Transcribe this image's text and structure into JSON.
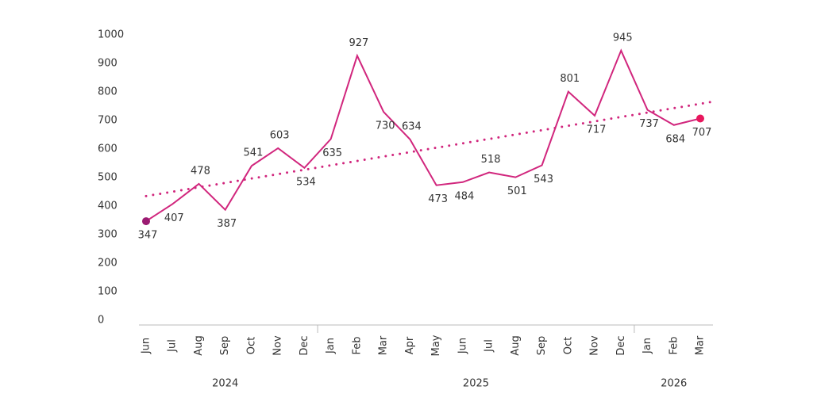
{
  "chart_data": {
    "type": "line",
    "categories": [
      "Jun",
      "Jul",
      "Aug",
      "Sep",
      "Oct",
      "Nov",
      "Dec",
      "Jan",
      "Feb",
      "Mar",
      "Apr",
      "May",
      "Jun",
      "Jul",
      "Aug",
      "Sep",
      "Oct",
      "Nov",
      "Dec",
      "Jan",
      "Feb",
      "Mar"
    ],
    "groups": [
      {
        "label": "2024",
        "start": 0,
        "end": 6
      },
      {
        "label": "2025",
        "start": 7,
        "end": 18
      },
      {
        "label": "2026",
        "start": 19,
        "end": 21
      }
    ],
    "series": [
      {
        "color": "#d1267d",
        "start_color": "#9b1b72",
        "end_color": "#e8175d",
        "values": [
          347,
          407,
          478,
          387,
          541,
          603,
          534,
          635,
          927,
          730,
          634,
          473,
          484,
          518,
          501,
          543,
          801,
          717,
          945,
          737,
          684,
          707
        ]
      }
    ],
    "trend": {
      "values": [
        435,
        765
      ],
      "color": "#d1267d"
    },
    "ylim": [
      0,
      1000
    ],
    "yticks": [
      0,
      100,
      200,
      300,
      400,
      500,
      600,
      700,
      800,
      900,
      1000
    ],
    "grid": false
  }
}
